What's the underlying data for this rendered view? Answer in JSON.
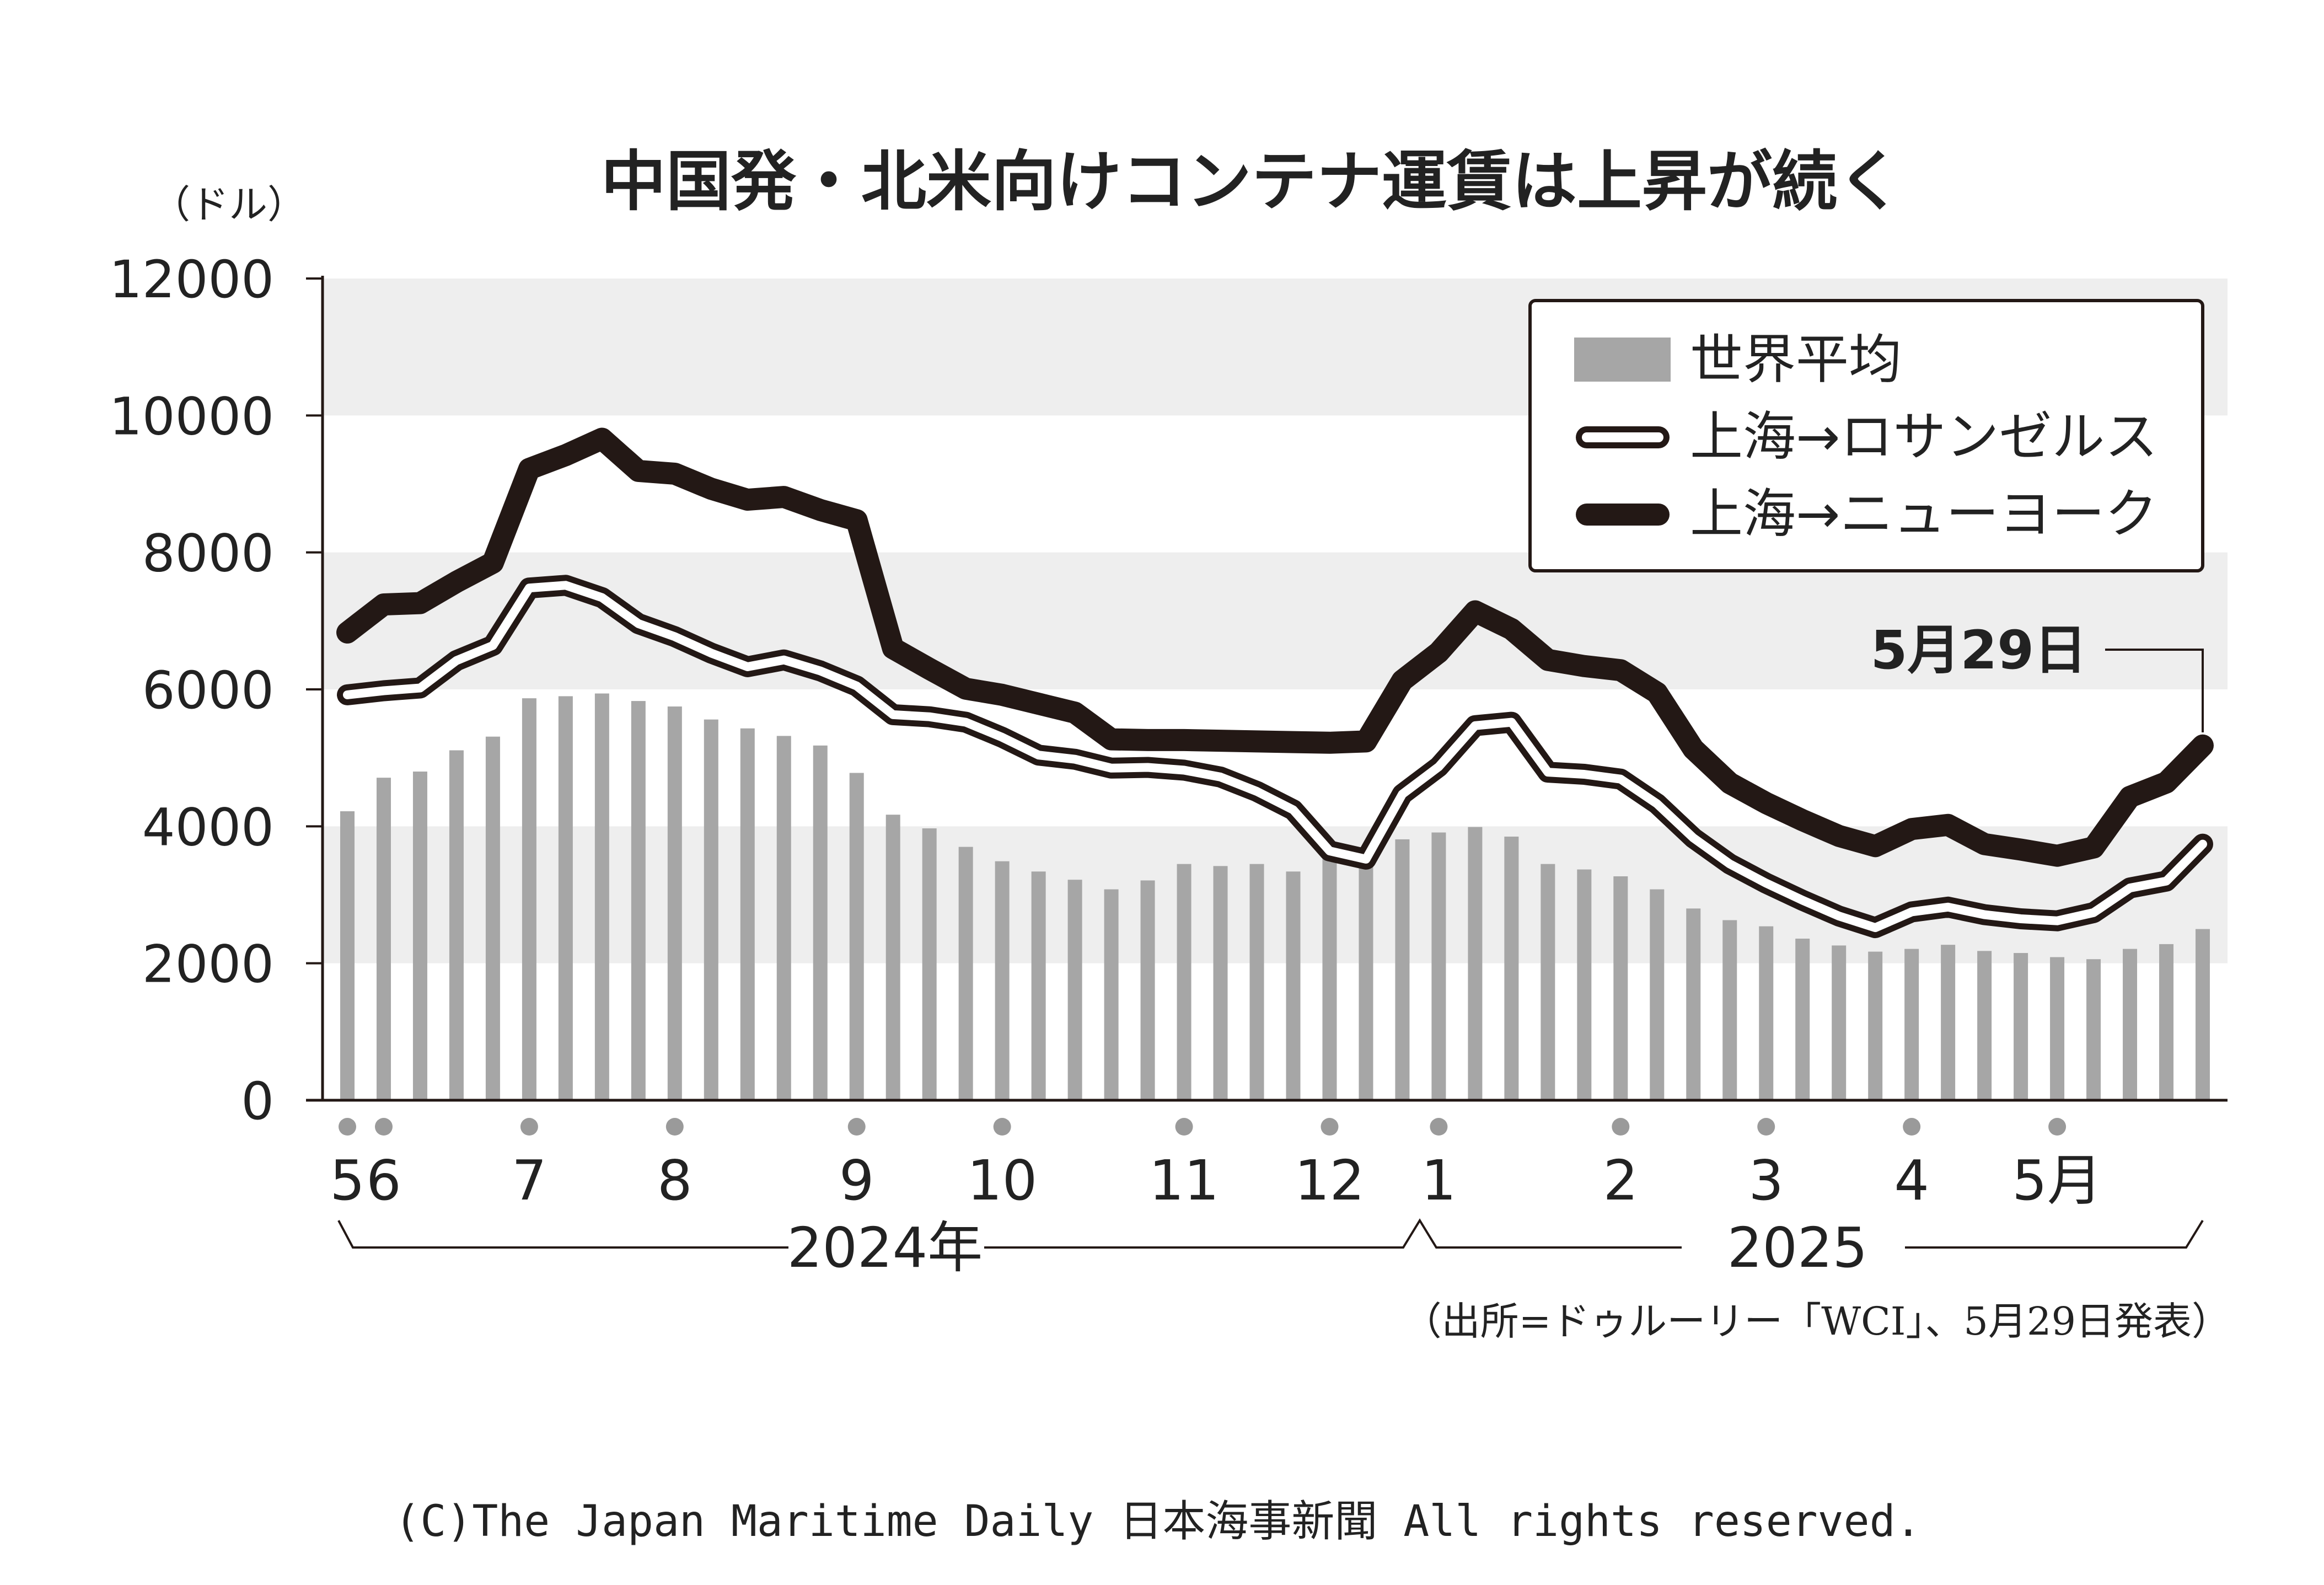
{
  "chart_data": {
    "type": "bar+line",
    "title": "中国発・北米向けコンテナ運賃は上昇が続く",
    "unit_label": "（ドル）",
    "ylim": [
      0,
      12000
    ],
    "yticks": [
      "0",
      "2000",
      "4000",
      "6000",
      "8000",
      "10000",
      "12000"
    ],
    "month_labels": [
      {
        "label": "5",
        "index": 0
      },
      {
        "label": "6",
        "index": 1
      },
      {
        "label": "7",
        "index": 5
      },
      {
        "label": "8",
        "index": 9
      },
      {
        "label": "9",
        "index": 14
      },
      {
        "label": "10",
        "index": 18
      },
      {
        "label": "11",
        "index": 23
      },
      {
        "label": "12",
        "index": 27
      },
      {
        "label": "1",
        "index": 30
      },
      {
        "label": "2",
        "index": 35
      },
      {
        "label": "3",
        "index": 39
      },
      {
        "label": "4",
        "index": 43
      },
      {
        "label": "5月",
        "index": 47
      }
    ],
    "years": [
      "2024年",
      "2025"
    ],
    "series": [
      {
        "name": "世界平均",
        "kind": "bar",
        "values": [
          4220,
          4710,
          4800,
          5110,
          5310,
          5870,
          5900,
          5940,
          5830,
          5750,
          5560,
          5430,
          5320,
          5180,
          4780,
          4170,
          3970,
          3700,
          3490,
          3340,
          3220,
          3080,
          3210,
          3450,
          3420,
          3450,
          3340,
          3540,
          3510,
          3810,
          3910,
          3990,
          3850,
          3450,
          3370,
          3270,
          3080,
          2800,
          2630,
          2540,
          2360,
          2260,
          2170,
          2210,
          2270,
          2180,
          2150,
          2090,
          2060,
          2210,
          2280,
          2500
        ]
      },
      {
        "name": "上海→ロサンゼルス",
        "kind": "line-outline",
        "values": [
          5920,
          5980,
          6020,
          6420,
          6640,
          7480,
          7520,
          7340,
          6960,
          6770,
          6530,
          6330,
          6430,
          6270,
          6050,
          5630,
          5600,
          5520,
          5300,
          5040,
          4980,
          4850,
          4860,
          4820,
          4720,
          4510,
          4240,
          3640,
          3520,
          4470,
          4870,
          5470,
          5520,
          4790,
          4760,
          4690,
          4330,
          3830,
          3450,
          3170,
          2920,
          2690,
          2520,
          2750,
          2820,
          2710,
          2650,
          2620,
          2740,
          3100,
          3200,
          3740
        ]
      },
      {
        "name": "上海→ニューヨーク",
        "kind": "line-thick",
        "values": [
          6830,
          7240,
          7260,
          7570,
          7850,
          9220,
          9420,
          9660,
          9190,
          9150,
          8930,
          8770,
          8810,
          8620,
          8470,
          6600,
          6300,
          6010,
          5920,
          5790,
          5660,
          5270,
          5260,
          5260,
          5250,
          5240,
          5230,
          5220,
          5240,
          6130,
          6540,
          7140,
          6880,
          6430,
          6340,
          6280,
          5950,
          5130,
          4630,
          4340,
          4090,
          3860,
          3710,
          3960,
          4020,
          3740,
          3660,
          3570,
          3690,
          4430,
          4640,
          5180
        ]
      }
    ],
    "annotation": "5月29日",
    "source": "（出所=ドゥルーリー「WCI」、5月29日発表）"
  },
  "legend": {
    "items": [
      "世界平均",
      "上海→ロサンゼルス",
      "上海→ニューヨーク"
    ]
  },
  "footer": {
    "copyright": "(C)The Japan Maritime Daily 日本海事新聞 All rights reserved."
  },
  "colors": {
    "bar": "#a6a6a6",
    "line": "#231815",
    "band": "#eeeeee",
    "dot": "#9a9a9a"
  }
}
